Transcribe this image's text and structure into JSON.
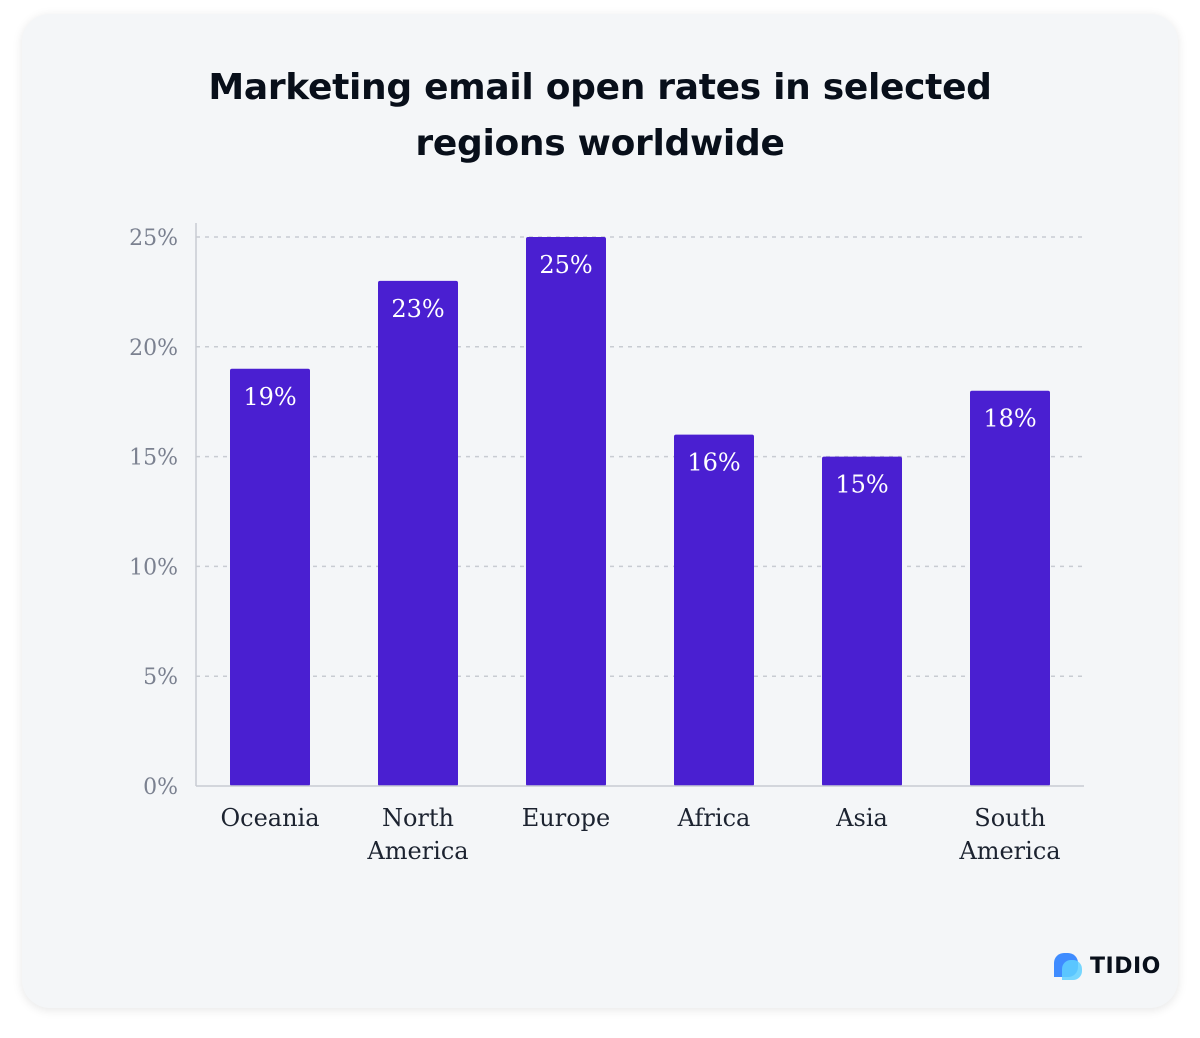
{
  "chart_data": {
    "type": "bar",
    "title_lines": [
      "Marketing email open rates in selected",
      "regions worldwide"
    ],
    "categories": [
      [
        "Oceania"
      ],
      [
        "North",
        "America"
      ],
      [
        "Europe"
      ],
      [
        "Africa"
      ],
      [
        "Asia"
      ],
      [
        "South",
        "America"
      ]
    ],
    "values": [
      19,
      23,
      25,
      16,
      15,
      18
    ],
    "value_labels": [
      "19%",
      "23%",
      "25%",
      "16%",
      "15%",
      "18%"
    ],
    "yticks": [
      0,
      5,
      10,
      15,
      20,
      25
    ],
    "ytick_labels": [
      "0%",
      "5%",
      "10%",
      "15%",
      "20%",
      "25%"
    ],
    "ylim": [
      0,
      25
    ],
    "xlabel": "",
    "ylabel": "",
    "grid": true,
    "bar_color": "#4a1fd1",
    "grid_color": "#c8ccd2",
    "axis_text_color": "#7b8190",
    "category_text_color": "#1c2330"
  },
  "brand": {
    "name": "TIDIO",
    "icon": "tidio-chat-bubble-icon",
    "colors": [
      "#3f8cff",
      "#2a5bff",
      "#5fd0ff"
    ]
  }
}
